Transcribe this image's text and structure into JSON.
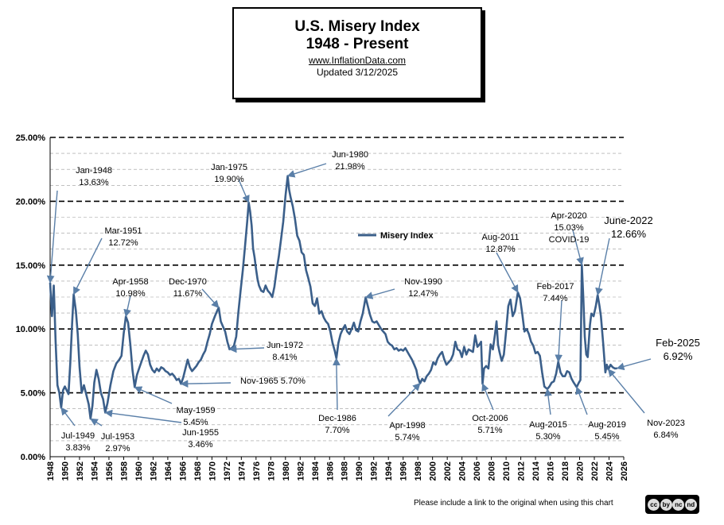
{
  "header": {
    "title": "U.S. Misery Index",
    "subtitle": "1948 - Present",
    "source": "www.InflationData.com",
    "updated": "Updated  3/12/2025"
  },
  "footer": {
    "note": "Please include a link to the original when using this chart",
    "license": "cc by nc nd",
    "license_items": [
      "cc",
      "by",
      "nc",
      "nd"
    ]
  },
  "chart_data": {
    "type": "line",
    "series_name": "Misery Index",
    "series_color": "#3b5f8a",
    "xlim": [
      1948,
      2026
    ],
    "ylim": [
      0,
      25
    ],
    "y_ticks": [
      "0.00%",
      "5.00%",
      "10.00%",
      "15.00%",
      "20.00%",
      "25.00%"
    ],
    "x_ticks": [
      "1948",
      "1950",
      "1952",
      "1954",
      "1956",
      "1958",
      "1960",
      "1962",
      "1964",
      "1966",
      "1968",
      "1970",
      "1972",
      "1974",
      "1976",
      "1978",
      "1980",
      "1982",
      "1984",
      "1986",
      "1988",
      "1990",
      "1992",
      "1994",
      "1996",
      "1998",
      "2000",
      "2002",
      "2004",
      "2006",
      "2008",
      "2010",
      "2012",
      "2014",
      "2016",
      "2018",
      "2020",
      "2022",
      "2024",
      "2026"
    ],
    "points": [
      [
        1948.0,
        13.63
      ],
      [
        1948.25,
        11.0
      ],
      [
        1948.5,
        13.4
      ],
      [
        1948.75,
        9.0
      ],
      [
        1949.0,
        5.6
      ],
      [
        1949.25,
        5.0
      ],
      [
        1949.5,
        3.83
      ],
      [
        1949.75,
        5.2
      ],
      [
        1950.0,
        5.5
      ],
      [
        1950.5,
        4.9
      ],
      [
        1950.75,
        7.4
      ],
      [
        1951.0,
        10.5
      ],
      [
        1951.2,
        12.72
      ],
      [
        1951.5,
        11.4
      ],
      [
        1951.75,
        9.6
      ],
      [
        1952.0,
        7.0
      ],
      [
        1952.3,
        5.0
      ],
      [
        1952.6,
        5.6
      ],
      [
        1952.9,
        4.9
      ],
      [
        1953.25,
        4.1
      ],
      [
        1953.5,
        2.97
      ],
      [
        1953.75,
        4.0
      ],
      [
        1954.0,
        5.8
      ],
      [
        1954.3,
        6.8
      ],
      [
        1954.6,
        6.1
      ],
      [
        1954.9,
        5.0
      ],
      [
        1955.2,
        4.5
      ],
      [
        1955.5,
        3.46
      ],
      [
        1955.8,
        4.2
      ],
      [
        1956.2,
        5.6
      ],
      [
        1956.6,
        6.7
      ],
      [
        1957.0,
        7.3
      ],
      [
        1957.4,
        7.6
      ],
      [
        1957.7,
        7.9
      ],
      [
        1958.0,
        9.6
      ],
      [
        1958.3,
        10.98
      ],
      [
        1958.6,
        10.5
      ],
      [
        1958.9,
        8.8
      ],
      [
        1959.2,
        6.8
      ],
      [
        1959.5,
        5.45
      ],
      [
        1959.8,
        6.4
      ],
      [
        1960.1,
        6.9
      ],
      [
        1960.4,
        7.4
      ],
      [
        1960.7,
        7.9
      ],
      [
        1961.0,
        8.3
      ],
      [
        1961.3,
        8.0
      ],
      [
        1961.6,
        7.2
      ],
      [
        1961.9,
        6.8
      ],
      [
        1962.2,
        6.6
      ],
      [
        1962.5,
        6.9
      ],
      [
        1962.8,
        6.7
      ],
      [
        1963.1,
        7.0
      ],
      [
        1963.4,
        6.9
      ],
      [
        1963.7,
        6.7
      ],
      [
        1964.0,
        6.6
      ],
      [
        1964.3,
        6.4
      ],
      [
        1964.6,
        6.5
      ],
      [
        1964.9,
        6.3
      ],
      [
        1965.2,
        6.0
      ],
      [
        1965.5,
        6.1
      ],
      [
        1965.8,
        5.7
      ],
      [
        1966.1,
        6.2
      ],
      [
        1966.4,
        6.9
      ],
      [
        1966.7,
        7.6
      ],
      [
        1967.0,
        7.0
      ],
      [
        1967.3,
        6.7
      ],
      [
        1967.6,
        6.9
      ],
      [
        1967.9,
        7.1
      ],
      [
        1968.2,
        7.4
      ],
      [
        1968.5,
        7.6
      ],
      [
        1968.8,
        8.0
      ],
      [
        1969.1,
        8.3
      ],
      [
        1969.4,
        9.0
      ],
      [
        1969.7,
        9.6
      ],
      [
        1970.0,
        10.4
      ],
      [
        1970.4,
        11.0
      ],
      [
        1970.7,
        11.4
      ],
      [
        1970.92,
        11.67
      ],
      [
        1971.2,
        10.6
      ],
      [
        1971.5,
        10.2
      ],
      [
        1971.8,
        9.8
      ],
      [
        1972.1,
        9.0
      ],
      [
        1972.4,
        8.41
      ],
      [
        1972.7,
        8.5
      ],
      [
        1973.0,
        8.7
      ],
      [
        1973.3,
        9.4
      ],
      [
        1973.6,
        11.3
      ],
      [
        1973.9,
        13.0
      ],
      [
        1974.2,
        14.6
      ],
      [
        1974.5,
        16.5
      ],
      [
        1974.8,
        18.4
      ],
      [
        1975.0,
        19.9
      ],
      [
        1975.2,
        19.2
      ],
      [
        1975.4,
        18.1
      ],
      [
        1975.6,
        16.3
      ],
      [
        1975.8,
        15.6
      ],
      [
        1976.0,
        14.7
      ],
      [
        1976.2,
        13.9
      ],
      [
        1976.4,
        13.4
      ],
      [
        1976.7,
        13.0
      ],
      [
        1977.0,
        12.9
      ],
      [
        1977.3,
        13.4
      ],
      [
        1977.6,
        13.0
      ],
      [
        1977.9,
        12.8
      ],
      [
        1978.2,
        12.5
      ],
      [
        1978.5,
        13.3
      ],
      [
        1978.8,
        14.6
      ],
      [
        1979.1,
        15.7
      ],
      [
        1979.4,
        17.0
      ],
      [
        1979.7,
        18.4
      ],
      [
        1980.0,
        20.4
      ],
      [
        1980.3,
        21.98
      ],
      [
        1980.5,
        20.9
      ],
      [
        1980.7,
        20.3
      ],
      [
        1981.0,
        19.6
      ],
      [
        1981.3,
        18.6
      ],
      [
        1981.6,
        17.3
      ],
      [
        1981.9,
        16.9
      ],
      [
        1982.2,
        16.0
      ],
      [
        1982.5,
        15.8
      ],
      [
        1982.8,
        14.6
      ],
      [
        1983.1,
        14.0
      ],
      [
        1983.4,
        13.3
      ],
      [
        1983.7,
        12.0
      ],
      [
        1984.0,
        11.8
      ],
      [
        1984.3,
        12.4
      ],
      [
        1984.6,
        11.2
      ],
      [
        1984.9,
        11.4
      ],
      [
        1985.2,
        10.9
      ],
      [
        1985.5,
        10.6
      ],
      [
        1985.8,
        10.4
      ],
      [
        1986.1,
        9.8
      ],
      [
        1986.4,
        8.9
      ],
      [
        1986.7,
        8.3
      ],
      [
        1986.92,
        7.7
      ],
      [
        1987.2,
        8.9
      ],
      [
        1987.5,
        9.6
      ],
      [
        1987.8,
        10.0
      ],
      [
        1988.1,
        10.3
      ],
      [
        1988.4,
        9.8
      ],
      [
        1988.7,
        9.6
      ],
      [
        1989.0,
        10.0
      ],
      [
        1989.3,
        10.5
      ],
      [
        1989.6,
        9.9
      ],
      [
        1989.9,
        9.8
      ],
      [
        1990.2,
        10.6
      ],
      [
        1990.5,
        11.2
      ],
      [
        1990.9,
        12.47
      ],
      [
        1991.2,
        11.8
      ],
      [
        1991.5,
        11.1
      ],
      [
        1991.8,
        10.6
      ],
      [
        1992.1,
        10.5
      ],
      [
        1992.4,
        10.6
      ],
      [
        1992.7,
        10.3
      ],
      [
        1993.0,
        10.0
      ],
      [
        1993.3,
        9.8
      ],
      [
        1993.6,
        9.6
      ],
      [
        1993.9,
        9.0
      ],
      [
        1994.2,
        8.8
      ],
      [
        1994.5,
        8.7
      ],
      [
        1994.8,
        8.4
      ],
      [
        1995.1,
        8.5
      ],
      [
        1995.4,
        8.3
      ],
      [
        1995.7,
        8.4
      ],
      [
        1996.0,
        8.3
      ],
      [
        1996.3,
        8.5
      ],
      [
        1996.6,
        8.2
      ],
      [
        1996.9,
        7.9
      ],
      [
        1997.2,
        7.6
      ],
      [
        1997.5,
        7.2
      ],
      [
        1997.8,
        6.8
      ],
      [
        1998.0,
        6.2
      ],
      [
        1998.3,
        5.74
      ],
      [
        1998.6,
        6.1
      ],
      [
        1998.9,
        5.9
      ],
      [
        1999.2,
        6.3
      ],
      [
        1999.5,
        6.5
      ],
      [
        1999.8,
        6.8
      ],
      [
        2000.1,
        7.4
      ],
      [
        2000.4,
        7.2
      ],
      [
        2000.7,
        7.7
      ],
      [
        2001.0,
        8.0
      ],
      [
        2001.3,
        8.2
      ],
      [
        2001.6,
        7.6
      ],
      [
        2001.9,
        7.2
      ],
      [
        2002.2,
        7.4
      ],
      [
        2002.5,
        7.6
      ],
      [
        2002.8,
        8.0
      ],
      [
        2003.1,
        9.0
      ],
      [
        2003.4,
        8.4
      ],
      [
        2003.7,
        8.3
      ],
      [
        2004.0,
        7.8
      ],
      [
        2004.3,
        8.6
      ],
      [
        2004.6,
        8.0
      ],
      [
        2004.9,
        8.4
      ],
      [
        2005.2,
        8.3
      ],
      [
        2005.5,
        8.2
      ],
      [
        2005.8,
        9.5
      ],
      [
        2006.1,
        8.6
      ],
      [
        2006.4,
        8.8
      ],
      [
        2006.6,
        9.0
      ],
      [
        2006.8,
        5.71
      ],
      [
        2007.0,
        6.9
      ],
      [
        2007.3,
        7.1
      ],
      [
        2007.6,
        6.9
      ],
      [
        2007.9,
        8.8
      ],
      [
        2008.2,
        8.4
      ],
      [
        2008.5,
        9.6
      ],
      [
        2008.7,
        10.6
      ],
      [
        2008.9,
        8.8
      ],
      [
        2009.1,
        8.2
      ],
      [
        2009.4,
        7.5
      ],
      [
        2009.7,
        8.0
      ],
      [
        2010.0,
        9.8
      ],
      [
        2010.3,
        11.8
      ],
      [
        2010.6,
        12.3
      ],
      [
        2010.9,
        11.0
      ],
      [
        2011.2,
        11.4
      ],
      [
        2011.6,
        12.87
      ],
      [
        2011.9,
        12.4
      ],
      [
        2012.2,
        11.2
      ],
      [
        2012.5,
        9.8
      ],
      [
        2012.8,
        10.0
      ],
      [
        2013.1,
        9.6
      ],
      [
        2013.4,
        9.0
      ],
      [
        2013.7,
        8.7
      ],
      [
        2014.0,
        8.1
      ],
      [
        2014.3,
        8.2
      ],
      [
        2014.6,
        7.9
      ],
      [
        2014.9,
        6.6
      ],
      [
        2015.2,
        5.5
      ],
      [
        2015.6,
        5.3
      ],
      [
        2015.9,
        5.5
      ],
      [
        2016.2,
        5.8
      ],
      [
        2016.5,
        5.9
      ],
      [
        2016.8,
        6.5
      ],
      [
        2017.1,
        7.44
      ],
      [
        2017.4,
        6.6
      ],
      [
        2017.7,
        6.3
      ],
      [
        2018.0,
        6.3
      ],
      [
        2018.3,
        6.7
      ],
      [
        2018.6,
        6.6
      ],
      [
        2018.9,
        6.1
      ],
      [
        2019.2,
        5.8
      ],
      [
        2019.6,
        5.45
      ],
      [
        2019.9,
        5.8
      ],
      [
        2020.1,
        6.0
      ],
      [
        2020.3,
        15.03
      ],
      [
        2020.5,
        12.4
      ],
      [
        2020.7,
        9.4
      ],
      [
        2020.9,
        8.0
      ],
      [
        2021.1,
        7.8
      ],
      [
        2021.4,
        10.3
      ],
      [
        2021.6,
        11.2
      ],
      [
        2021.9,
        11.0
      ],
      [
        2022.2,
        11.8
      ],
      [
        2022.45,
        12.66
      ],
      [
        2022.7,
        11.8
      ],
      [
        2022.9,
        11.0
      ],
      [
        2023.2,
        8.9
      ],
      [
        2023.5,
        6.6
      ],
      [
        2023.7,
        7.2
      ],
      [
        2023.9,
        6.84
      ],
      [
        2024.2,
        7.2
      ],
      [
        2024.5,
        7.0
      ],
      [
        2024.8,
        6.9
      ],
      [
        2025.1,
        6.92
      ]
    ],
    "annotations": [
      {
        "label": "Jan-1948",
        "value": "13.63%",
        "x": 1948.0,
        "y": 13.63
      },
      {
        "label": "Jul-1949",
        "value": "3.83%",
        "x": 1949.5,
        "y": 3.83
      },
      {
        "label": "Mar-1951",
        "value": "12.72%",
        "x": 1951.2,
        "y": 12.72
      },
      {
        "label": "Jul-1953",
        "value": "2.97%",
        "x": 1953.5,
        "y": 2.97
      },
      {
        "label": "Jun-1955",
        "value": "3.46%",
        "x": 1955.5,
        "y": 3.46
      },
      {
        "label": "Apr-1958",
        "value": "10.98%",
        "x": 1958.3,
        "y": 10.98
      },
      {
        "label": "May-1959",
        "value": "5.45%",
        "x": 1959.5,
        "y": 5.45
      },
      {
        "label": "Nov-1965",
        "value": "5.70%",
        "x": 1965.8,
        "y": 5.7
      },
      {
        "label": "Dec-1970",
        "value": "11.67%",
        "x": 1970.92,
        "y": 11.67
      },
      {
        "label": "Jun-1972",
        "value": "8.41%",
        "x": 1972.4,
        "y": 8.41
      },
      {
        "label": "Jan-1975",
        "value": "19.90%",
        "x": 1975.0,
        "y": 19.9
      },
      {
        "label": "Jun-1980",
        "value": "21.98%",
        "x": 1980.3,
        "y": 21.98
      },
      {
        "label": "Dec-1986",
        "value": "7.70%",
        "x": 1986.92,
        "y": 7.7
      },
      {
        "label": "Nov-1990",
        "value": "12.47%",
        "x": 1990.9,
        "y": 12.47
      },
      {
        "label": "Apr-1998",
        "value": "5.74%",
        "x": 1998.3,
        "y": 5.74
      },
      {
        "label": "Oct-2006",
        "value": "5.71%",
        "x": 2006.8,
        "y": 5.71
      },
      {
        "label": "Aug-2011",
        "value": "12.87%",
        "x": 2011.6,
        "y": 12.87
      },
      {
        "label": "Aug-2015",
        "value": "5.30%",
        "x": 2015.6,
        "y": 5.3
      },
      {
        "label": "Feb-2017",
        "value": "7.44%",
        "x": 2017.1,
        "y": 7.44
      },
      {
        "label": "Aug-2019",
        "value": "5.45%",
        "x": 2019.6,
        "y": 5.45
      },
      {
        "label": "Apr-2020",
        "value": "15.03%",
        "extra": "COVID-19",
        "x": 2020.3,
        "y": 15.03
      },
      {
        "label": "June-2022",
        "value": "12.66%",
        "x": 2022.45,
        "y": 12.66
      },
      {
        "label": "Nov-2023",
        "value": "6.84%",
        "x": 2023.9,
        "y": 6.84
      },
      {
        "label": "Feb-2025",
        "value": "6.92%",
        "x": 2025.1,
        "y": 6.92
      }
    ]
  }
}
